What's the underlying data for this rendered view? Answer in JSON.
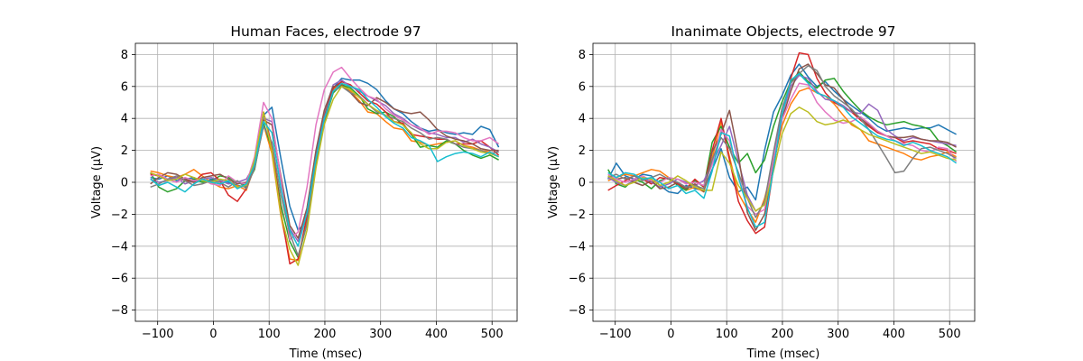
{
  "figure": {
    "series_colors": [
      "#1f77b4",
      "#ff7f0e",
      "#2ca02c",
      "#d62728",
      "#9467bd",
      "#8c564b",
      "#e377c2",
      "#7f7f7f",
      "#bcbd22",
      "#17becf"
    ],
    "grid_color": "#b0b0b0"
  },
  "chart_data": [
    {
      "type": "line",
      "title": "Human Faces, electrode 97",
      "xlabel": "Time (msec)",
      "ylabel": "Voltage (μV)",
      "xlim": [
        -140,
        545
      ],
      "ylim": [
        -8.7,
        8.7
      ],
      "xticks": [
        -100,
        0,
        100,
        200,
        300,
        400,
        500
      ],
      "yticks": [
        -8,
        -6,
        -4,
        -2,
        0,
        2,
        4,
        6,
        8
      ],
      "grid": true,
      "x": [
        -113,
        -98,
        -82,
        -66,
        -51,
        -35,
        -20,
        -4,
        12,
        27,
        43,
        59,
        74,
        90,
        105,
        121,
        137,
        152,
        168,
        184,
        199,
        215,
        230,
        246,
        262,
        277,
        293,
        309,
        324,
        340,
        355,
        371,
        387,
        402,
        418,
        434,
        449,
        465,
        480,
        496,
        512
      ],
      "series": [
        {
          "values": [
            0.3,
            0.2,
            0.4,
            0.1,
            0.2,
            0.3,
            0.0,
            0.2,
            0.1,
            0.0,
            -0.2,
            -0.3,
            1.2,
            4.2,
            4.7,
            1.5,
            -1.5,
            -3.0,
            -2.4,
            1.5,
            4.3,
            5.9,
            6.5,
            6.4,
            6.4,
            6.2,
            5.8,
            5.1,
            4.6,
            4.3,
            3.8,
            3.4,
            3.2,
            3.3,
            3.1,
            3.0,
            3.1,
            3.0,
            3.5,
            3.3,
            2.2
          ]
        },
        {
          "values": [
            0.7,
            0.6,
            0.4,
            0.3,
            0.5,
            0.8,
            0.4,
            0.0,
            -0.3,
            -0.4,
            -0.2,
            -0.5,
            1.0,
            3.6,
            1.8,
            -2.1,
            -4.8,
            -4.9,
            -2.2,
            1.7,
            4.2,
            5.8,
            6.2,
            5.7,
            5.1,
            4.4,
            4.3,
            3.8,
            3.4,
            3.3,
            2.6,
            2.5,
            2.3,
            2.4,
            2.5,
            2.6,
            2.3,
            2.2,
            2.0,
            1.9,
            1.6
          ]
        },
        {
          "values": [
            0.6,
            -0.3,
            -0.6,
            -0.4,
            0.1,
            0.2,
            0.0,
            0.1,
            0.4,
            0.3,
            0.0,
            -0.2,
            0.8,
            3.7,
            2.1,
            -1.4,
            -3.7,
            -4.7,
            -2.6,
            1.1,
            3.8,
            5.6,
            6.1,
            5.9,
            5.4,
            4.6,
            4.3,
            4.4,
            4.1,
            3.6,
            3.0,
            2.2,
            2.3,
            2.2,
            2.6,
            2.4,
            2.0,
            1.7,
            1.5,
            1.7,
            1.4
          ]
        },
        {
          "values": [
            0.5,
            0.4,
            0.2,
            0.3,
            0.1,
            0.0,
            0.5,
            0.6,
            0.1,
            -0.8,
            -1.2,
            -0.4,
            1.3,
            4.4,
            2.3,
            -1.8,
            -5.1,
            -4.8,
            -2.1,
            1.6,
            4.1,
            5.9,
            6.3,
            6.1,
            5.6,
            5.1,
            4.9,
            4.4,
            3.8,
            3.7,
            3.0,
            2.9,
            2.8,
            2.7,
            2.7,
            2.4,
            2.4,
            2.4,
            2.6,
            2.2,
            1.7
          ]
        },
        {
          "values": [
            0.2,
            0.0,
            0.1,
            0.3,
            -0.1,
            0.1,
            0.2,
            0.3,
            0.1,
            -0.1,
            0.0,
            0.2,
            1.1,
            4.0,
            3.8,
            0.2,
            -2.9,
            -3.7,
            -1.8,
            1.9,
            4.4,
            6.1,
            6.4,
            6.0,
            5.7,
            5.4,
            5.1,
            4.8,
            4.3,
            4.0,
            3.6,
            3.3,
            3.1,
            3.0,
            2.8,
            2.8,
            2.5,
            2.7,
            2.4,
            2.2,
            1.9
          ]
        },
        {
          "values": [
            -0.1,
            0.3,
            0.6,
            0.5,
            0.2,
            0.0,
            0.3,
            0.4,
            0.5,
            0.2,
            -0.1,
            0.0,
            1.0,
            3.9,
            3.6,
            0.4,
            -2.7,
            -3.5,
            -1.6,
            2.0,
            4.5,
            6.0,
            6.1,
            5.6,
            5.0,
            4.8,
            5.3,
            5.0,
            4.6,
            4.4,
            4.3,
            4.4,
            3.9,
            3.3,
            2.9,
            2.7,
            2.6,
            2.4,
            2.1,
            2.0,
            2.0
          ]
        },
        {
          "values": [
            0.4,
            0.5,
            0.2,
            0.0,
            0.3,
            0.1,
            0.2,
            -0.1,
            -0.2,
            0.4,
            0.0,
            -0.1,
            1.6,
            5.0,
            4.0,
            0.2,
            -3.6,
            -3.1,
            -0.3,
            3.6,
            5.8,
            6.9,
            7.2,
            6.5,
            5.9,
            5.4,
            5.2,
            4.6,
            4.2,
            3.9,
            3.6,
            3.4,
            3.0,
            3.2,
            3.2,
            3.1,
            2.8,
            2.6,
            2.6,
            2.8,
            2.4
          ]
        },
        {
          "values": [
            -0.3,
            -0.1,
            0.2,
            0.4,
            0.1,
            -0.2,
            -0.1,
            0.1,
            0.0,
            -0.3,
            0.1,
            -0.4,
            0.9,
            3.5,
            2.5,
            -0.8,
            -3.2,
            -4.6,
            -2.6,
            1.4,
            3.9,
            5.7,
            6.0,
            5.6,
            5.4,
            4.9,
            4.4,
            4.2,
            4.0,
            3.8,
            3.4,
            3.1,
            2.7,
            2.8,
            2.7,
            2.4,
            2.2,
            2.1,
            2.0,
            1.8,
            1.9
          ]
        },
        {
          "values": [
            0.6,
            0.4,
            0.1,
            0.2,
            0.5,
            0.3,
            0.1,
            0.0,
            0.2,
            0.1,
            -0.3,
            -0.2,
            1.4,
            4.4,
            2.0,
            -2.0,
            -4.2,
            -5.2,
            -3.0,
            0.9,
            3.6,
            5.2,
            6.0,
            5.8,
            5.3,
            4.9,
            4.5,
            4.2,
            3.8,
            3.6,
            3.1,
            2.4,
            2.1,
            2.1,
            2.5,
            2.6,
            2.3,
            2.1,
            1.9,
            1.8,
            1.6
          ]
        },
        {
          "values": [
            0.2,
            -0.2,
            0.0,
            -0.3,
            -0.6,
            -0.1,
            0.2,
            0.0,
            -0.1,
            0.1,
            -0.4,
            -0.1,
            1.1,
            3.8,
            3.1,
            -0.3,
            -3.0,
            -4.0,
            -1.9,
            1.5,
            4.0,
            5.7,
            6.2,
            6.0,
            5.8,
            5.2,
            4.7,
            4.1,
            3.7,
            3.4,
            2.8,
            2.6,
            2.3,
            1.3,
            1.6,
            1.8,
            1.9,
            1.8,
            1.6,
            1.9,
            1.6
          ]
        }
      ]
    },
    {
      "type": "line",
      "title": "Inanimate Objects, electrode 97",
      "xlabel": "Time (msec)",
      "ylabel": "Voltage (μV)",
      "xlim": [
        -140,
        545
      ],
      "ylim": [
        -8.7,
        8.7
      ],
      "xticks": [
        -100,
        0,
        100,
        200,
        300,
        400,
        500
      ],
      "yticks": [
        -8,
        -6,
        -4,
        -2,
        0,
        2,
        4,
        6,
        8
      ],
      "grid": true,
      "x": [
        -113,
        -98,
        -82,
        -66,
        -51,
        -35,
        -20,
        -4,
        12,
        27,
        43,
        59,
        74,
        90,
        105,
        121,
        137,
        152,
        168,
        184,
        199,
        215,
        230,
        246,
        262,
        277,
        293,
        309,
        324,
        340,
        355,
        371,
        387,
        402,
        418,
        434,
        449,
        465,
        480,
        496,
        512
      ],
      "series": [
        {
          "values": [
            0.2,
            1.2,
            0.4,
            0.2,
            0.5,
            0.4,
            -0.2,
            -0.6,
            -0.7,
            -0.2,
            -0.4,
            -0.5,
            0.8,
            2.1,
            0.3,
            -0.6,
            -0.3,
            -1.1,
            2.0,
            4.4,
            5.4,
            6.7,
            7.4,
            6.6,
            6.0,
            6.3,
            5.7,
            5.2,
            4.8,
            4.4,
            4.0,
            3.5,
            3.2,
            3.3,
            3.4,
            3.3,
            3.4,
            3.4,
            3.6,
            3.3,
            3.0
          ]
        },
        {
          "values": [
            0.1,
            0.3,
            0.5,
            0.4,
            0.6,
            0.8,
            0.7,
            0.3,
            -0.2,
            -0.5,
            -0.3,
            -0.6,
            1.5,
            3.8,
            1.6,
            -0.7,
            -1.7,
            -2.5,
            -1.0,
            1.2,
            3.5,
            4.9,
            5.7,
            5.9,
            5.6,
            5.4,
            4.9,
            4.2,
            3.6,
            3.3,
            2.6,
            2.4,
            2.2,
            2.0,
            1.8,
            1.5,
            1.4,
            1.6,
            1.7,
            1.9,
            1.6
          ]
        },
        {
          "values": [
            0.8,
            -0.1,
            -0.3,
            0.2,
            0.0,
            -0.4,
            0.1,
            0.3,
            -0.2,
            -0.5,
            0.1,
            -0.3,
            2.5,
            3.5,
            2.2,
            1.2,
            1.8,
            0.6,
            1.4,
            3.5,
            5.0,
            6.3,
            6.9,
            6.3,
            5.9,
            6.4,
            6.5,
            5.7,
            5.1,
            4.5,
            4.1,
            3.8,
            3.6,
            3.7,
            3.8,
            3.6,
            3.5,
            3.3,
            2.6,
            2.3,
            1.9
          ]
        },
        {
          "values": [
            -0.5,
            -0.2,
            0.1,
            0.4,
            0.2,
            -0.1,
            0.3,
            0.2,
            -0.1,
            -0.4,
            0.2,
            -0.3,
            2.0,
            4.0,
            1.4,
            -1.2,
            -2.4,
            -3.2,
            -2.8,
            0.9,
            4.1,
            6.5,
            8.1,
            8.0,
            6.5,
            5.6,
            5.0,
            4.7,
            4.4,
            3.9,
            3.5,
            3.1,
            2.9,
            2.8,
            2.5,
            2.6,
            2.5,
            2.4,
            2.1,
            2.0,
            1.8
          ]
        },
        {
          "values": [
            0.3,
            0.0,
            -0.2,
            0.1,
            0.3,
            0.0,
            -0.3,
            -0.1,
            0.2,
            0.0,
            -0.2,
            0.1,
            1.2,
            2.3,
            3.5,
            1.3,
            -0.8,
            -1.8,
            -1.4,
            1.6,
            4.2,
            6.0,
            6.7,
            6.5,
            5.7,
            5.2,
            5.1,
            4.8,
            4.4,
            4.3,
            4.9,
            4.5,
            3.3,
            2.9,
            2.6,
            2.8,
            2.7,
            2.6,
            2.5,
            2.4,
            2.3
          ]
        },
        {
          "values": [
            0.4,
            0.2,
            0.3,
            0.0,
            -0.2,
            0.1,
            -0.4,
            -0.3,
            0.0,
            -0.4,
            -0.1,
            -0.6,
            1.9,
            3.0,
            4.5,
            1.7,
            -1.9,
            -3.0,
            -2.0,
            1.0,
            3.9,
            5.7,
            7.1,
            7.4,
            6.8,
            6.1,
            5.9,
            5.2,
            4.5,
            4.0,
            3.6,
            3.2,
            2.9,
            2.8,
            2.8,
            2.9,
            2.7,
            2.6,
            2.6,
            2.5,
            2.2
          ]
        },
        {
          "values": [
            0.5,
            0.2,
            0.0,
            0.2,
            0.4,
            0.1,
            0.0,
            0.3,
            0.2,
            -0.1,
            0.0,
            -0.2,
            1.1,
            3.3,
            2.6,
            0.4,
            -1.5,
            -2.0,
            -1.7,
            1.5,
            3.9,
            5.2,
            6.2,
            6.1,
            5.0,
            4.4,
            3.9,
            3.7,
            3.8,
            4.1,
            3.7,
            3.2,
            2.9,
            2.6,
            2.4,
            2.3,
            2.0,
            1.9,
            2.2,
            2.1,
            1.3
          ]
        },
        {
          "values": [
            0.3,
            0.5,
            0.2,
            0.4,
            0.1,
            0.3,
            0.5,
            0.2,
            0.0,
            -0.3,
            -0.2,
            -0.4,
            1.4,
            2.8,
            2.1,
            0.6,
            -1.0,
            -2.2,
            -1.2,
            1.9,
            4.6,
            6.2,
            6.8,
            7.3,
            7.0,
            6.0,
            5.4,
            5.0,
            4.6,
            4.0,
            3.3,
            2.4,
            1.5,
            0.6,
            0.7,
            1.5,
            2.1,
            2.2,
            2.0,
            1.8,
            1.5
          ]
        },
        {
          "values": [
            0.4,
            0.1,
            -0.2,
            0.0,
            0.3,
            0.2,
            -0.2,
            0.0,
            0.4,
            0.1,
            -0.3,
            -0.5,
            -0.5,
            1.9,
            1.2,
            -0.2,
            -1.0,
            -1.8,
            -1.4,
            0.7,
            3.0,
            4.3,
            4.7,
            4.4,
            3.8,
            3.6,
            3.7,
            3.9,
            3.7,
            3.3,
            3.0,
            2.8,
            2.6,
            2.4,
            2.2,
            2.0,
            1.8,
            1.9,
            1.7,
            1.5,
            1.4
          ]
        },
        {
          "values": [
            0.6,
            0.3,
            0.6,
            0.5,
            0.2,
            0.3,
            0.0,
            -0.4,
            -0.2,
            -0.7,
            -0.5,
            -1.0,
            0.7,
            3.1,
            2.9,
            0.3,
            -1.6,
            -2.8,
            -2.5,
            0.9,
            4.2,
            6.4,
            6.8,
            6.2,
            5.6,
            5.4,
            5.1,
            4.7,
            4.1,
            3.7,
            3.3,
            2.9,
            2.7,
            2.6,
            2.3,
            2.5,
            2.3,
            2.0,
            1.8,
            1.6,
            1.2
          ]
        }
      ]
    }
  ]
}
